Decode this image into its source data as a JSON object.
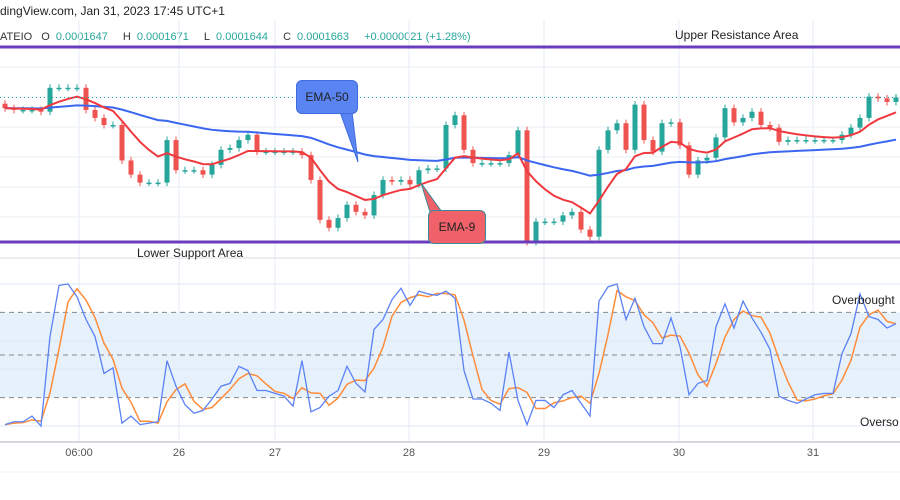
{
  "header": {
    "source_line": "dingView.com, Jan 31, 2023 17:45 UTC+1",
    "symbol": "ATEIO",
    "open_label": "O",
    "open": "0.0001647",
    "high_label": "H",
    "high": "0.0001671",
    "low_label": "L",
    "low": "0.0001644",
    "close_label": "C",
    "close": "0.0001663",
    "change": "+0.0000021 (+1.28%)"
  },
  "annotations": {
    "upper": "Upper Resistance Area",
    "lower": "Lower Support Area",
    "ema50": "EMA-50",
    "ema9": "EMA-9",
    "overbought": "Overbought",
    "oversold": "Overso"
  },
  "colors": {
    "up": "#26a69a",
    "down": "#ef5350",
    "ema50": "#3a66f0",
    "ema9": "#f0393f",
    "zone_line": "#6a3dbf",
    "stoch_k": "#5b82f5",
    "stoch_d": "#ff8c3a",
    "band_fill": "#e6f1fc"
  },
  "chart_data": [
    {
      "type": "candlestick",
      "title": "",
      "x_ticks": [
        "06:00",
        "26",
        "27",
        "28",
        "29",
        "30",
        "31"
      ],
      "levels": {
        "upper_resistance": 0.000172,
        "lower_support": 0.00015
      },
      "ylim": [
        0.00015,
        0.000172
      ],
      "indicators": [
        "EMA-9",
        "EMA-50"
      ],
      "close": [
        0.0001651,
        0.0001649,
        0.0001649,
        0.0001649,
        0.0001647,
        0.0001674,
        0.0001674,
        0.0001674,
        0.0001674,
        0.0001649,
        0.000164,
        0.0001632,
        0.0001632,
        0.0001592,
        0.0001576,
        0.0001567,
        0.0001567,
        0.0001567,
        0.0001615,
        0.0001581,
        0.0001581,
        0.0001581,
        0.0001576,
        0.0001587,
        0.0001604,
        0.0001606,
        0.0001615,
        0.0001621,
        0.0001602,
        0.0001602,
        0.0001602,
        0.0001602,
        0.0001602,
        0.0001598,
        0.000157,
        0.0001525,
        0.0001516,
        0.0001527,
        0.0001542,
        0.0001534,
        0.000153,
        0.0001553,
        0.000157,
        0.0001568,
        0.000157,
        0.0001565,
        0.0001581,
        0.0001583,
        0.0001583,
        0.0001632,
        0.0001643,
        0.0001604,
        0.0001589,
        0.0001589,
        0.0001589,
        0.0001589,
        0.0001598,
        0.0001626,
        0.00015,
        0.0001523,
        0.0001523,
        0.0001523,
        0.000153,
        0.0001534,
        0.0001514,
        0.0001506,
        0.0001604,
        0.0001626,
        0.0001634,
        0.0001604,
        0.0001655,
        0.0001615,
        0.0001602,
        0.0001634,
        0.0001635,
        0.0001609,
        0.0001576,
        0.0001592,
        0.0001595,
        0.0001618,
        0.0001651,
        0.0001635,
        0.000164,
        0.0001647,
        0.0001632,
        0.0001629,
        0.0001613,
        0.0001615,
        0.0001615,
        0.0001615,
        0.0001615,
        0.0001615,
        0.0001615,
        0.0001621,
        0.0001629,
        0.000164,
        0.0001664,
        0.0001662,
        0.0001658,
        0.0001663
      ]
    },
    {
      "type": "line",
      "title": "",
      "ylim": [
        0,
        100
      ],
      "bands": [
        20,
        50,
        80
      ],
      "k": [
        1,
        3,
        3,
        7,
        0,
        63,
        99,
        100,
        91,
        75,
        63,
        37,
        41,
        2,
        7,
        1,
        2,
        3,
        46,
        28,
        15,
        9,
        11,
        19,
        28,
        30,
        42,
        39,
        25,
        25,
        23,
        21,
        14,
        46,
        10,
        13,
        21,
        25,
        42,
        30,
        24,
        68,
        75,
        89,
        97,
        85,
        95,
        93,
        92,
        95,
        90,
        39,
        19,
        19,
        16,
        11,
        52,
        18,
        1,
        18,
        18,
        13,
        22,
        25,
        16,
        7,
        88,
        98,
        100,
        75,
        90,
        70,
        58,
        58,
        76,
        56,
        22,
        30,
        32,
        70,
        86,
        69,
        88,
        76,
        66,
        54,
        21,
        18,
        16,
        19,
        22,
        23,
        23,
        51,
        65,
        93,
        77,
        75,
        69,
        72
      ]
    }
  ]
}
